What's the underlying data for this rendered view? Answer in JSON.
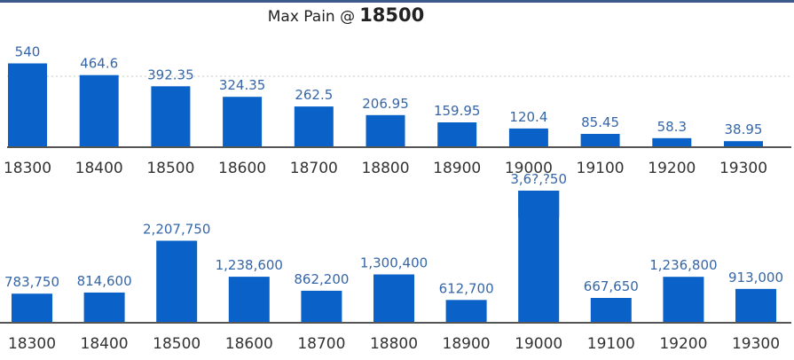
{
  "title": {
    "label": "Max Pain @",
    "value": "18500"
  },
  "colors": {
    "bar": "#0a62c8",
    "axis": "#555555",
    "grid": "#c8c8c8",
    "label": "#3566a8"
  },
  "chart_data": [
    {
      "type": "bar",
      "categories": [
        "18300",
        "18400",
        "18500",
        "18600",
        "18700",
        "18800",
        "18900",
        "19000",
        "19100",
        "19200",
        "19300"
      ],
      "values": [
        540,
        464.6,
        392.35,
        324.35,
        262.5,
        206.95,
        159.95,
        120.4,
        85.45,
        58.3,
        38.95
      ],
      "data_labels": [
        "540",
        "464.6",
        "392.35",
        "324.35",
        "262.5",
        "206.95",
        "159.95",
        "120.4",
        "85.45",
        "58.3",
        "38.95"
      ],
      "ylim": [
        0,
        600
      ],
      "grid": true
    },
    {
      "type": "bar",
      "categories": [
        "18300",
        "18400",
        "18500",
        "18600",
        "18700",
        "18800",
        "18900",
        "19000",
        "19100",
        "19200",
        "19300"
      ],
      "values": [
        783750,
        814600,
        2207750,
        1238600,
        862200,
        1300400,
        612700,
        3650000,
        667650,
        1236800,
        913000
      ],
      "data_labels": [
        "783,750",
        "814,600",
        "2,207,750",
        "1,238,600",
        "862,200",
        "1,300,400",
        "612,700",
        "3,6?,?50",
        "667,650",
        "1,236,800",
        "913,000"
      ],
      "ylim": [
        0,
        3700000
      ],
      "grid": false
    }
  ]
}
